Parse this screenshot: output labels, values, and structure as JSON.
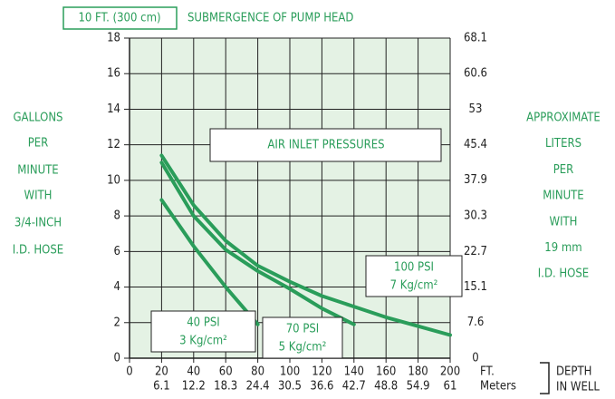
{
  "chart_data": {
    "type": "line",
    "submergence_label": "10 FT. (300 cm)",
    "title": "SUBMERGENCE OF PUMP HEAD",
    "annotation": "AIR INLET PRESSURES",
    "y_label": [
      "GALLONS",
      "PER",
      "MINUTE",
      "WITH",
      "3/4-INCH",
      "I.D. HOSE"
    ],
    "y2_label": [
      "APPROXIMATE",
      "LITERS",
      "PER",
      "MINUTE",
      "WITH",
      "19 mm",
      "I.D. HOSE"
    ],
    "x_label": "FT.",
    "x2_label": "Meters",
    "depth_label": [
      "DEPTH",
      "IN WELL"
    ],
    "x": [
      20,
      40,
      60,
      80,
      100,
      120,
      140,
      160,
      180,
      200
    ],
    "series": [
      {
        "name": "40 PSI",
        "pressure": "3 Kg/cm²",
        "color": "#2a9d5a",
        "values": [
          8.9,
          6.3,
          4.0,
          1.9,
          null,
          null,
          null,
          null,
          null,
          null
        ]
      },
      {
        "name": "70 PSI",
        "pressure": "5 Kg/cm²",
        "color": "#2a9d5a",
        "values": [
          11.0,
          8.0,
          6.1,
          4.9,
          3.9,
          2.8,
          1.9,
          null,
          null,
          null
        ]
      },
      {
        "name": "100 PSI",
        "pressure": "7 Kg/cm²",
        "color": "#2a9d5a",
        "values": [
          11.4,
          8.6,
          6.6,
          5.2,
          4.3,
          3.5,
          2.9,
          2.3,
          1.8,
          1.3
        ]
      }
    ],
    "xlim": [
      0,
      200
    ],
    "xticks": [
      0,
      20,
      40,
      60,
      80,
      100,
      120,
      140,
      160,
      180,
      200
    ],
    "x2lim": [
      0,
      61
    ],
    "x2ticks": [
      6.1,
      12.2,
      18.3,
      24.4,
      30.5,
      36.6,
      42.7,
      48.8,
      54.9,
      61
    ],
    "ylim": [
      0,
      18
    ],
    "yticks": [
      0,
      2,
      4,
      6,
      8,
      10,
      12,
      14,
      16,
      18
    ],
    "y2lim": [
      0,
      68.1
    ],
    "y2ticks": [
      0,
      7.6,
      15.1,
      22.7,
      30.3,
      37.9,
      45.4,
      53,
      60.6,
      68.1
    ],
    "grid": true
  }
}
